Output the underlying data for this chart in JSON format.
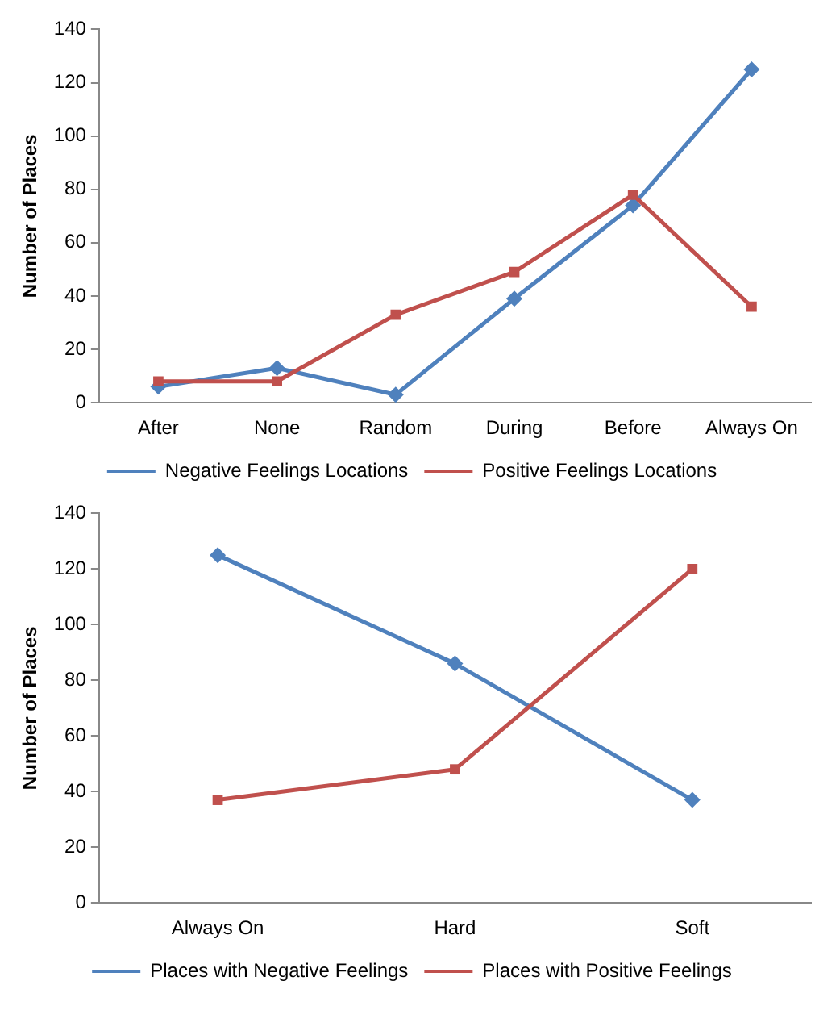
{
  "chart_data": [
    {
      "type": "line",
      "ylabel": "Number of Places",
      "categories": [
        "After",
        "None",
        "Random",
        "During",
        "Before",
        "Always On"
      ],
      "ylim": [
        0,
        140
      ],
      "yticks": [
        0,
        20,
        40,
        60,
        80,
        100,
        120,
        140
      ],
      "grid": false,
      "legend": "bottom",
      "series": [
        {
          "name": "Negative Feelings Locations",
          "color": "#4f81bd",
          "marker": "diamond",
          "values": [
            6,
            13,
            3,
            39,
            74,
            125
          ]
        },
        {
          "name": "Positive Feelings Locations",
          "color": "#c0504d",
          "marker": "square",
          "values": [
            8,
            8,
            33,
            49,
            78,
            36
          ]
        }
      ]
    },
    {
      "type": "line",
      "ylabel": "Number of Places",
      "categories": [
        "Always On",
        "Hard",
        "Soft"
      ],
      "ylim": [
        0,
        140
      ],
      "yticks": [
        0,
        20,
        40,
        60,
        80,
        100,
        120,
        140
      ],
      "grid": false,
      "legend": "bottom",
      "series": [
        {
          "name": "Places with Negative Feelings",
          "color": "#4f81bd",
          "marker": "diamond",
          "values": [
            125,
            86,
            37
          ]
        },
        {
          "name": "Places with Positive Feelings",
          "color": "#c0504d",
          "marker": "square",
          "values": [
            37,
            48,
            120
          ]
        }
      ]
    }
  ]
}
